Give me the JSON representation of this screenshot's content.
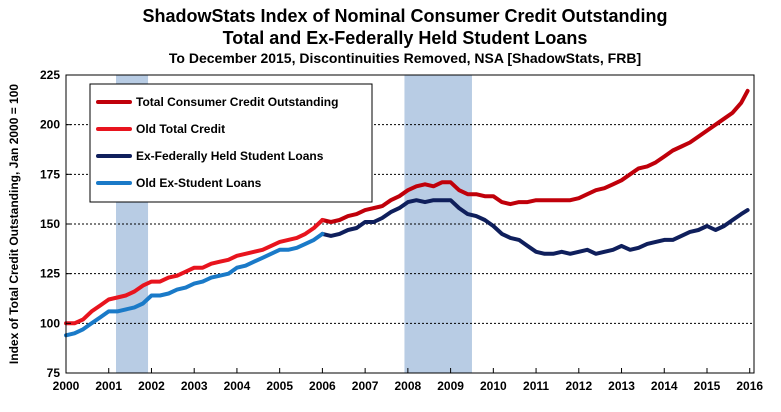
{
  "chart_data": {
    "type": "line",
    "title": "ShadowStats Index of Nominal Consumer Credit Outstanding",
    "subtitle": "Total and Ex-Federally Held Student Loans",
    "subtitle2": "To December 2015, Discontinuities Removed, NSA [ShadowStats, FRB]",
    "xlabel": "",
    "ylabel": "Index of Total Credit Outstanding, Jan 2000 = 100",
    "xlim": [
      2000,
      2016.1
    ],
    "ylim": [
      75,
      225
    ],
    "x_ticks": [
      2000,
      2001,
      2002,
      2003,
      2004,
      2005,
      2006,
      2007,
      2008,
      2009,
      2010,
      2011,
      2012,
      2013,
      2014,
      2015,
      2016
    ],
    "x_tick_labels": [
      "2000",
      "2001",
      "2002",
      "2003",
      "2004",
      "2005",
      "2006",
      "2007",
      "2008",
      "2009",
      "2010",
      "2011",
      "2012",
      "2013",
      "2014",
      "2015",
      "2016"
    ],
    "y_ticks": [
      75,
      100,
      125,
      150,
      175,
      200,
      225
    ],
    "y_tick_labels": [
      "75",
      "100",
      "125",
      "150",
      "175",
      "200",
      "225"
    ],
    "grid": true,
    "legend_position": "top-left",
    "recession_shading": [
      {
        "start": 2001.17,
        "end": 2001.92
      },
      {
        "start": 2007.92,
        "end": 2009.5
      }
    ],
    "recession_color": "#b8cce4",
    "series": [
      {
        "name": "Total Consumer Credit Outstanding",
        "color": "#c0000a",
        "width": 4,
        "x": [
          2006.0,
          2006.2,
          2006.4,
          2006.6,
          2006.8,
          2007.0,
          2007.2,
          2007.4,
          2007.6,
          2007.8,
          2008.0,
          2008.2,
          2008.4,
          2008.6,
          2008.8,
          2009.0,
          2009.2,
          2009.4,
          2009.6,
          2009.8,
          2010.0,
          2010.2,
          2010.4,
          2010.6,
          2010.8,
          2011.0,
          2011.2,
          2011.4,
          2011.6,
          2011.8,
          2012.0,
          2012.2,
          2012.4,
          2012.6,
          2012.8,
          2013.0,
          2013.2,
          2013.4,
          2013.6,
          2013.8,
          2014.0,
          2014.2,
          2014.4,
          2014.6,
          2014.8,
          2015.0,
          2015.2,
          2015.4,
          2015.6,
          2015.8,
          2015.95
        ],
        "y": [
          152,
          151,
          152,
          154,
          155,
          157,
          158,
          159,
          162,
          164,
          167,
          169,
          170,
          169,
          171,
          171,
          167,
          165,
          165,
          164,
          164,
          161,
          160,
          161,
          161,
          162,
          162,
          162,
          162,
          162,
          163,
          165,
          167,
          168,
          170,
          172,
          175,
          178,
          179,
          181,
          184,
          187,
          189,
          191,
          194,
          197,
          200,
          203,
          206,
          211,
          217
        ]
      },
      {
        "name": "Old Total Credit",
        "color": "#e8141e",
        "width": 4,
        "x": [
          2000.0,
          2000.2,
          2000.4,
          2000.6,
          2000.8,
          2001.0,
          2001.2,
          2001.4,
          2001.6,
          2001.8,
          2002.0,
          2002.2,
          2002.4,
          2002.6,
          2002.8,
          2003.0,
          2003.2,
          2003.4,
          2003.6,
          2003.8,
          2004.0,
          2004.2,
          2004.4,
          2004.6,
          2004.8,
          2005.0,
          2005.2,
          2005.4,
          2005.6,
          2005.8,
          2006.0
        ],
        "y": [
          100,
          100,
          102,
          106,
          109,
          112,
          113,
          114,
          116,
          119,
          121,
          121,
          123,
          124,
          126,
          128,
          128,
          130,
          131,
          132,
          134,
          135,
          136,
          137,
          139,
          141,
          142,
          143,
          145,
          148,
          152
        ]
      },
      {
        "name": "Ex-Federally Held Student Loans",
        "color": "#0f1f5c",
        "width": 4,
        "x": [
          2006.0,
          2006.2,
          2006.4,
          2006.6,
          2006.8,
          2007.0,
          2007.2,
          2007.4,
          2007.6,
          2007.8,
          2008.0,
          2008.2,
          2008.4,
          2008.6,
          2008.8,
          2009.0,
          2009.2,
          2009.4,
          2009.6,
          2009.8,
          2010.0,
          2010.2,
          2010.4,
          2010.6,
          2010.8,
          2011.0,
          2011.2,
          2011.4,
          2011.6,
          2011.8,
          2012.0,
          2012.2,
          2012.4,
          2012.6,
          2012.8,
          2013.0,
          2013.2,
          2013.4,
          2013.6,
          2013.8,
          2014.0,
          2014.2,
          2014.4,
          2014.6,
          2014.8,
          2015.0,
          2015.2,
          2015.4,
          2015.6,
          2015.8,
          2015.95
        ],
        "y": [
          145,
          144,
          145,
          147,
          148,
          151,
          151,
          153,
          156,
          158,
          161,
          162,
          161,
          162,
          162,
          162,
          158,
          155,
          154,
          152,
          149,
          145,
          143,
          142,
          139,
          136,
          135,
          135,
          136,
          135,
          136,
          137,
          135,
          136,
          137,
          139,
          137,
          138,
          140,
          141,
          142,
          142,
          144,
          146,
          147,
          149,
          147,
          149,
          152,
          155,
          157
        ]
      },
      {
        "name": "Old Ex-Student Loans",
        "color": "#1a7ac8",
        "width": 4,
        "x": [
          2000.0,
          2000.2,
          2000.4,
          2000.6,
          2000.8,
          2001.0,
          2001.2,
          2001.4,
          2001.6,
          2001.8,
          2002.0,
          2002.2,
          2002.4,
          2002.6,
          2002.8,
          2003.0,
          2003.2,
          2003.4,
          2003.6,
          2003.8,
          2004.0,
          2004.2,
          2004.4,
          2004.6,
          2004.8,
          2005.0,
          2005.2,
          2005.4,
          2005.6,
          2005.8,
          2006.0
        ],
        "y": [
          94,
          95,
          97,
          100,
          103,
          106,
          106,
          107,
          108,
          110,
          114,
          114,
          115,
          117,
          118,
          120,
          121,
          123,
          124,
          125,
          128,
          129,
          131,
          133,
          135,
          137,
          137,
          138,
          140,
          142,
          145
        ]
      }
    ]
  }
}
